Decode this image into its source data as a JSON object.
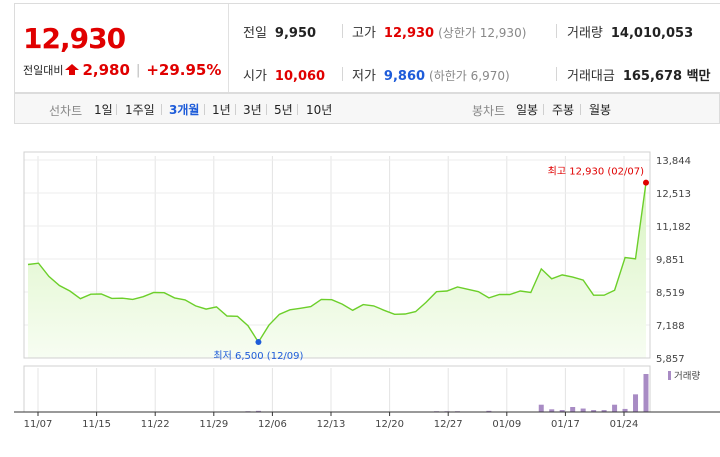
{
  "summary": {
    "price": "12,930",
    "prev_close_label": "전일대비",
    "change": "2,980",
    "change_rate": "+29.95%",
    "prev_day_label": "전일",
    "prev_day": "9,950",
    "open_label": "시가",
    "open": "10,060",
    "high_label": "고가",
    "high": "12,930",
    "upper_limit": "(상한가 12,930)",
    "low_label": "저가",
    "low": "9,860",
    "lower_limit": "(하한가 6,970)",
    "volume_label": "거래량",
    "volume": "14,010,053",
    "amount_label": "거래대금",
    "amount": "165,678 백만"
  },
  "toolbar": {
    "line_label": "선차트",
    "periods": [
      "1일",
      "1주일",
      "3개월",
      "1년",
      "3년",
      "5년",
      "10년"
    ],
    "active_period": "3개월",
    "candle_label": "봉차트",
    "candles": [
      "일봉",
      "주봉",
      "월봉"
    ]
  },
  "colors": {
    "up": "#e00000",
    "down": "#1e5cd9",
    "line": "#6ccf2a",
    "fill_top": "#e1f6cf",
    "volume_bar": "#a88bc4"
  },
  "chart_data": {
    "type": "area",
    "y_ticks": [
      "13,844",
      "12,513",
      "11,182",
      "9,851",
      "8,519",
      "7,188",
      "5,857"
    ],
    "ylim": [
      5857,
      13844
    ],
    "x_ticks": [
      "11/07",
      "11/15",
      "11/22",
      "11/29",
      "12/06",
      "12/13",
      "12/20",
      "12/27",
      "01/09",
      "01/17",
      "01/24"
    ],
    "max_label": "최고 12,930 (02/07)",
    "min_label": "최저 6,500 (12/09)",
    "volume_legend": "거래량",
    "grid": true,
    "values": [
      9630,
      9680,
      9150,
      8780,
      8560,
      8250,
      8430,
      8440,
      8260,
      8270,
      8220,
      8330,
      8500,
      8490,
      8280,
      8200,
      7960,
      7830,
      7920,
      7550,
      7540,
      7160,
      6500,
      7180,
      7620,
      7800,
      7860,
      7930,
      8220,
      8210,
      8030,
      7780,
      8010,
      7960,
      7780,
      7620,
      7630,
      7730,
      8100,
      8530,
      8560,
      8720,
      8630,
      8530,
      8280,
      8420,
      8420,
      8560,
      8500,
      9450,
      9050,
      9210,
      9120,
      9000,
      8390,
      8390,
      8590,
      9910,
      9860,
      12930
    ],
    "volume": [
      0,
      0,
      0,
      0,
      0,
      0,
      0,
      0,
      0,
      0,
      0,
      0,
      0,
      0,
      0,
      0,
      0,
      0,
      0,
      0,
      0,
      0.2,
      0.3,
      0.1,
      0,
      0,
      0,
      0,
      0,
      0,
      0,
      0,
      0,
      0,
      0,
      0,
      0,
      0,
      0,
      0.2,
      0.2,
      0.2,
      0,
      0,
      0.3,
      0,
      0,
      0,
      0,
      1.9,
      0.7,
      0.5,
      1.3,
      0.9,
      0.5,
      0.5,
      1.9,
      0.8,
      4.6,
      9.9
    ]
  }
}
